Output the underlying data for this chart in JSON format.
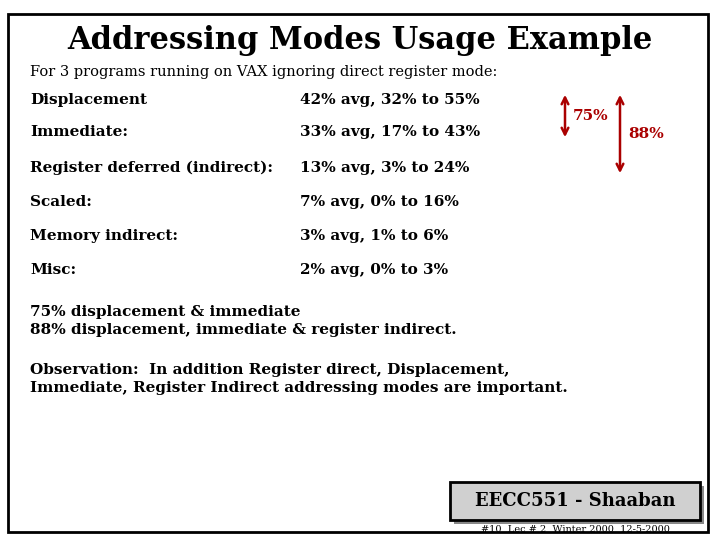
{
  "title": "Addressing Modes Usage Example",
  "subtitle": "For 3 programs running on VAX ignoring direct register mode:",
  "rows": [
    {
      "label": "Displacement",
      "value": "42% avg, 32% to 55%"
    },
    {
      "label": "Immediate:",
      "value": "33% avg, 17% to 43%"
    },
    {
      "label": "Register deferred (indirect):",
      "value": "13% avg, 3% to 24%"
    },
    {
      "label": "Scaled:",
      "value": "7% avg, 0% to 16%"
    },
    {
      "label": "Memory indirect:",
      "value": "3% avg, 1% to 6%"
    },
    {
      "label": "Misc:",
      "value": "2% avg, 0% to 3%"
    }
  ],
  "note1": "75% displacement & immediate",
  "note2": "88% displacement, immediate & register indirect.",
  "observation_line1": "Observation:  In addition Register direct, Displacement,",
  "observation_line2": "Immediate, Register Indirect addressing modes are important.",
  "footer_box": "EECC551 - Shaaban",
  "footer_small": "#10  Lec # 2  Winter 2000  12-5-2000",
  "arrow_label_75": "75%",
  "arrow_label_88": "88%",
  "bg_color": "#ffffff",
  "border_color": "#000000",
  "text_color": "#000000",
  "arrow_color": "#aa0000",
  "title_fontsize": 22,
  "subtitle_fontsize": 10.5,
  "row_label_fontsize": 11,
  "row_value_fontsize": 11,
  "note_fontsize": 11,
  "obs_fontsize": 11,
  "footer_fontsize": 13,
  "footer_small_fontsize": 7,
  "arrow_fontsize": 11
}
